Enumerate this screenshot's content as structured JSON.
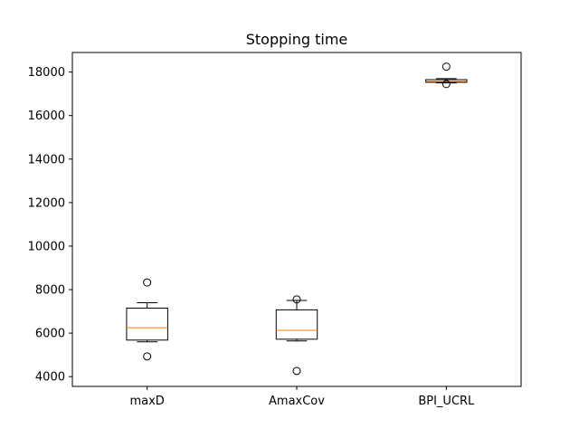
{
  "chart_data": {
    "type": "box",
    "title": "Stopping time",
    "xlabel": "",
    "ylabel": "",
    "categories": [
      "maxD",
      "AmaxCov",
      "BPI_UCRL"
    ],
    "ylim": [
      3550,
      18900
    ],
    "yticks": [
      4000,
      6000,
      8000,
      10000,
      12000,
      14000,
      16000,
      18000
    ],
    "ytick_labels": [
      "4000",
      "6000",
      "8000",
      "10000",
      "12000",
      "14000",
      "16000",
      "18000"
    ],
    "grid": false,
    "colors": {
      "box": "#000000",
      "median": "#ff7f0e",
      "axes": "#000000",
      "background": "#ffffff"
    },
    "boxes": [
      {
        "name": "maxD",
        "whisker_low": 5600,
        "q1": 5680,
        "median": 6250,
        "q3": 7150,
        "whisker_high": 7400,
        "fliers": [
          8330,
          4930
        ]
      },
      {
        "name": "AmaxCov",
        "whisker_low": 5640,
        "q1": 5720,
        "median": 6130,
        "q3": 7070,
        "whisker_high": 7500,
        "fliers": [
          7550,
          4260
        ]
      },
      {
        "name": "BPI_UCRL",
        "whisker_low": 17500,
        "q1": 17530,
        "median": 17570,
        "q3": 17650,
        "whisker_high": 17700,
        "fliers": [
          18250,
          17450
        ]
      }
    ]
  }
}
